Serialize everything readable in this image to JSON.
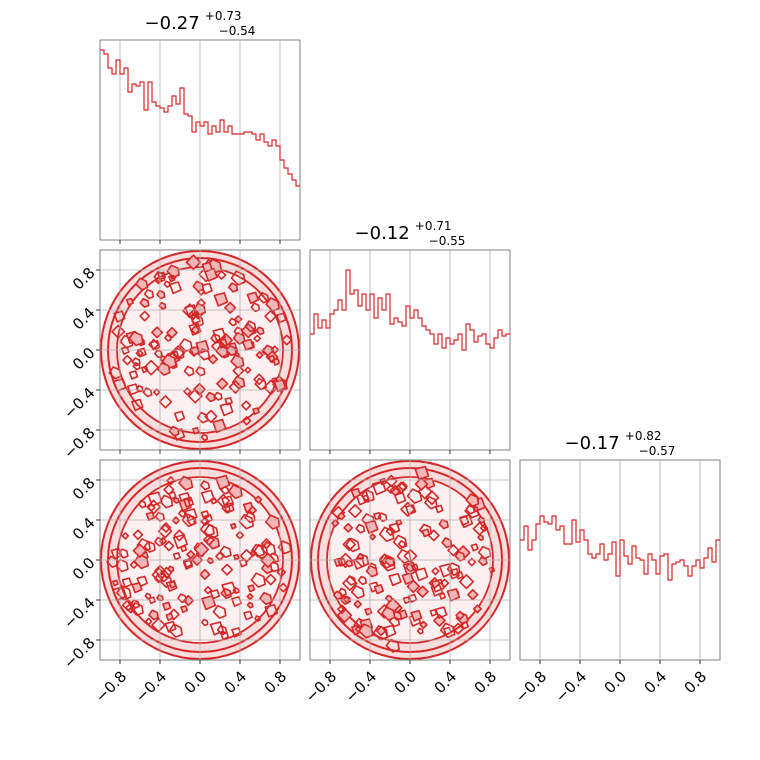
{
  "chart_data": {
    "type": "corner",
    "panels": [
      {
        "kind": "hist",
        "param_index": 0,
        "title": {
          "main": "−0.27",
          "sup": "+0.73",
          "sub": "−0.54"
        },
        "values": [
          0.95,
          0.93,
          0.86,
          0.83,
          0.9,
          0.83,
          0.86,
          0.74,
          0.78,
          0.77,
          0.79,
          0.65,
          0.79,
          0.69,
          0.67,
          0.66,
          0.64,
          0.67,
          0.72,
          0.68,
          0.76,
          0.63,
          0.62,
          0.54,
          0.59,
          0.57,
          0.59,
          0.53,
          0.57,
          0.54,
          0.6,
          0.54,
          0.57,
          0.53,
          0.53,
          0.53,
          0.54,
          0.54,
          0.53,
          0.5,
          0.53,
          0.49,
          0.47,
          0.5,
          0.47,
          0.4,
          0.36,
          0.33,
          0.3,
          0.27
        ]
      },
      {
        "kind": "hist",
        "param_index": 1,
        "title": {
          "main": "−0.12",
          "sup": "+0.71",
          "sub": "−0.55"
        },
        "values": [
          0.58,
          0.68,
          0.61,
          0.65,
          0.61,
          0.68,
          0.7,
          0.75,
          0.7,
          0.9,
          0.78,
          0.8,
          0.72,
          0.78,
          0.7,
          0.78,
          0.66,
          0.76,
          0.7,
          0.78,
          0.63,
          0.66,
          0.64,
          0.62,
          0.72,
          0.66,
          0.7,
          0.66,
          0.62,
          0.6,
          0.58,
          0.53,
          0.58,
          0.51,
          0.56,
          0.53,
          0.55,
          0.58,
          0.5,
          0.63,
          0.6,
          0.54,
          0.57,
          0.58,
          0.53,
          0.51,
          0.56,
          0.6,
          0.57,
          0.58
        ]
      },
      {
        "kind": "hist",
        "param_index": 2,
        "title": {
          "main": "−0.17",
          "sup": "+0.82",
          "sub": "−0.57"
        },
        "values": [
          0.6,
          0.67,
          0.55,
          0.6,
          0.68,
          0.72,
          0.69,
          0.68,
          0.72,
          0.65,
          0.67,
          0.58,
          0.58,
          0.7,
          0.59,
          0.65,
          0.6,
          0.53,
          0.51,
          0.53,
          0.58,
          0.5,
          0.53,
          0.59,
          0.42,
          0.6,
          0.52,
          0.48,
          0.57,
          0.51,
          0.5,
          0.43,
          0.53,
          0.5,
          0.43,
          0.52,
          0.53,
          0.4,
          0.48,
          0.49,
          0.5,
          0.47,
          0.42,
          0.47,
          0.5,
          0.46,
          0.51,
          0.56,
          0.49,
          0.6
        ]
      },
      {
        "kind": "contour2d",
        "x_param": 0,
        "y_param": 1
      },
      {
        "kind": "contour2d",
        "x_param": 0,
        "y_param": 2
      },
      {
        "kind": "contour2d",
        "x_param": 1,
        "y_param": 2
      }
    ],
    "axis_range": [
      -1,
      1
    ],
    "tick_labels": [
      "−0.8",
      "−0.4",
      "0.0",
      "0.4",
      "0.8"
    ],
    "tick_values": [
      -0.8,
      -0.4,
      0.0,
      0.4,
      0.8
    ],
    "grid": true,
    "colors": {
      "line": "#d62728",
      "fill": "#f4b6b6",
      "grid": "#b0b0b0",
      "axis": "#808080"
    }
  }
}
